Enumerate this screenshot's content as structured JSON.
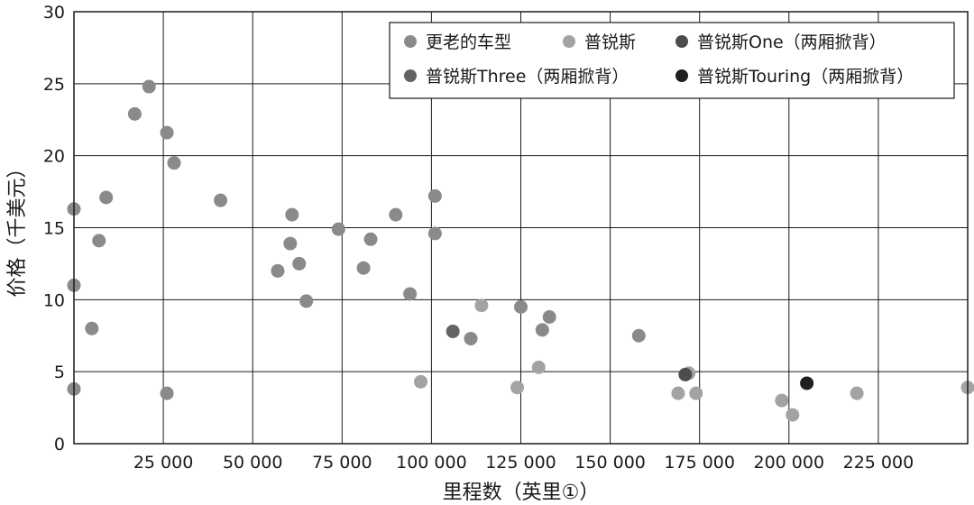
{
  "chart_data": {
    "type": "scatter",
    "xlabel": "里程数（英里①）",
    "ylabel": "价格（千美元）",
    "xlim": [
      0,
      250000
    ],
    "ylim": [
      0,
      30
    ],
    "xticks": [
      25000,
      50000,
      75000,
      100000,
      125000,
      150000,
      175000,
      200000,
      225000
    ],
    "xtick_labels": [
      "25 000",
      "50 000",
      "75 000",
      "100 000",
      "125 000",
      "150 000",
      "175 000",
      "200 000",
      "225 000"
    ],
    "yticks": [
      0,
      5,
      10,
      15,
      20,
      25,
      30
    ],
    "ytick_labels": [
      "0",
      "5",
      "10",
      "15",
      "20",
      "25",
      "30"
    ],
    "grid": true,
    "legend_position": "top-right",
    "series": [
      {
        "name": "更老的车型",
        "color": "#8a8a8a",
        "points": [
          {
            "x": 0,
            "y": 16.3
          },
          {
            "x": 0,
            "y": 11.0
          },
          {
            "x": 0,
            "y": 3.8
          },
          {
            "x": 5000,
            "y": 8.0
          },
          {
            "x": 7000,
            "y": 14.1
          },
          {
            "x": 9000,
            "y": 17.1
          },
          {
            "x": 17000,
            "y": 22.9
          },
          {
            "x": 21000,
            "y": 24.8
          },
          {
            "x": 26000,
            "y": 21.6
          },
          {
            "x": 26000,
            "y": 3.5
          },
          {
            "x": 28000,
            "y": 19.5
          },
          {
            "x": 41000,
            "y": 16.9
          },
          {
            "x": 57000,
            "y": 12.0
          },
          {
            "x": 60500,
            "y": 13.9
          },
          {
            "x": 61000,
            "y": 15.9
          },
          {
            "x": 63000,
            "y": 12.5
          },
          {
            "x": 65000,
            "y": 9.9
          },
          {
            "x": 74000,
            "y": 14.9
          },
          {
            "x": 81000,
            "y": 12.2
          },
          {
            "x": 83000,
            "y": 14.2
          },
          {
            "x": 90000,
            "y": 15.9
          },
          {
            "x": 94000,
            "y": 10.4
          },
          {
            "x": 101000,
            "y": 17.2
          },
          {
            "x": 101000,
            "y": 14.6
          },
          {
            "x": 111000,
            "y": 7.3
          },
          {
            "x": 125000,
            "y": 9.5
          },
          {
            "x": 131000,
            "y": 7.9
          },
          {
            "x": 133000,
            "y": 8.8
          },
          {
            "x": 158000,
            "y": 7.5
          }
        ]
      },
      {
        "name": "普锐斯",
        "color": "#a3a3a3",
        "points": [
          {
            "x": 97000,
            "y": 4.3
          },
          {
            "x": 114000,
            "y": 9.6
          },
          {
            "x": 124000,
            "y": 3.9
          },
          {
            "x": 130000,
            "y": 5.3
          },
          {
            "x": 169000,
            "y": 3.5
          },
          {
            "x": 172000,
            "y": 4.9
          },
          {
            "x": 174000,
            "y": 3.5
          },
          {
            "x": 198000,
            "y": 3.0
          },
          {
            "x": 201000,
            "y": 2.0
          },
          {
            "x": 219000,
            "y": 3.5
          },
          {
            "x": 250000,
            "y": 3.9
          }
        ]
      },
      {
        "name": "普锐斯One（两厢掀背）",
        "color": "#4d4d4d",
        "points": [
          {
            "x": 171000,
            "y": 4.8
          }
        ]
      },
      {
        "name": "普锐斯Three（两厢掀背）",
        "color": "#636363",
        "points": [
          {
            "x": 106000,
            "y": 7.8
          }
        ]
      },
      {
        "name": "普锐斯Touring（两厢掀背）",
        "color": "#1f1f1f",
        "points": [
          {
            "x": 205000,
            "y": 4.2
          }
        ]
      }
    ]
  }
}
